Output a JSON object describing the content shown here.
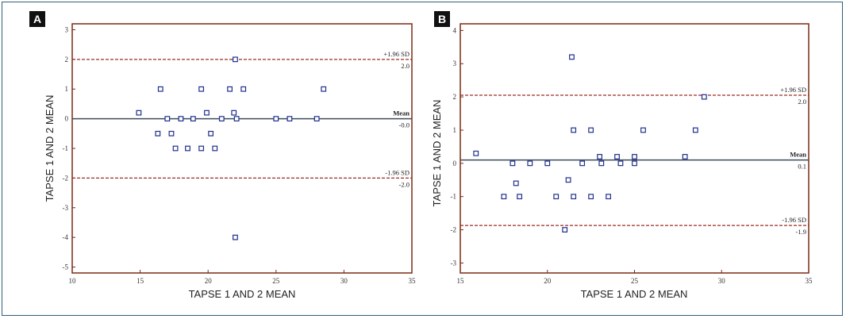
{
  "colors": {
    "plot_border": "#7a2a14",
    "mean_line": "#3c4d5a",
    "sd_line": "#9b2a24",
    "marker": "#1f2f8c",
    "panel_badge": "#111111"
  },
  "chart_data": [
    {
      "type": "scatter",
      "panel": "A",
      "xlabel": "TAPSE 1 AND 2 MEAN",
      "ylabel": "TAPSE 1 AND 2 MEAN",
      "xlim": [
        10,
        35
      ],
      "ylim": [
        -5.2,
        3.2
      ],
      "xticks": [
        10,
        15,
        20,
        25,
        30,
        35
      ],
      "yticks": [
        3,
        2,
        1,
        0,
        -1,
        -2,
        -3,
        -4,
        -5
      ],
      "ref_lines": {
        "upper": {
          "value": 2.0,
          "label": "+1.96 SD",
          "value_label": "2.0"
        },
        "mean": {
          "value": 0.0,
          "label": "Mean",
          "value_label": "-0.0"
        },
        "lower": {
          "value": -2.0,
          "label": "-1.96 SD",
          "value_label": "-2.0"
        }
      },
      "points": [
        [
          14.9,
          0.2
        ],
        [
          16.3,
          -0.5
        ],
        [
          16.5,
          1
        ],
        [
          17,
          0
        ],
        [
          17.3,
          -0.5
        ],
        [
          17.6,
          -1
        ],
        [
          18,
          0
        ],
        [
          18.5,
          -1
        ],
        [
          18.9,
          0
        ],
        [
          19.5,
          1
        ],
        [
          19.5,
          -1
        ],
        [
          19.9,
          0.2
        ],
        [
          20.2,
          -0.5
        ],
        [
          20.5,
          -1
        ],
        [
          21,
          0
        ],
        [
          21.6,
          1
        ],
        [
          21.9,
          0.2
        ],
        [
          22,
          2
        ],
        [
          22.1,
          0
        ],
        [
          22.6,
          1
        ],
        [
          25,
          0
        ],
        [
          26,
          0
        ],
        [
          28,
          0
        ],
        [
          28.5,
          1
        ],
        [
          22,
          -4
        ]
      ]
    },
    {
      "type": "scatter",
      "panel": "B",
      "xlabel": "TAPSE 1 AND 2 MEAN",
      "ylabel": "TAPSE 1 AND 2 MEAN",
      "xlim": [
        15,
        35
      ],
      "ylim": [
        -3.3,
        4.2
      ],
      "xticks": [
        15,
        20,
        25,
        30,
        35
      ],
      "yticks": [
        4,
        3,
        2,
        1,
        0,
        -1,
        -2,
        -3
      ],
      "ref_lines": {
        "upper": {
          "value": 2.05,
          "label": "+1.96 SD",
          "value_label": "2.0"
        },
        "mean": {
          "value": 0.1,
          "label": "Mean",
          "value_label": "0.1"
        },
        "lower": {
          "value": -1.87,
          "label": "-1.96 SD",
          "value_label": "-1.9"
        }
      },
      "points": [
        [
          15.9,
          0.3
        ],
        [
          17.5,
          -1
        ],
        [
          18,
          0
        ],
        [
          18.2,
          -0.6
        ],
        [
          18.4,
          -1
        ],
        [
          19,
          0
        ],
        [
          20,
          0
        ],
        [
          20.5,
          -1
        ],
        [
          21,
          -2
        ],
        [
          21.2,
          -0.5
        ],
        [
          21.4,
          3.2
        ],
        [
          21.5,
          1
        ],
        [
          21.5,
          -1
        ],
        [
          22,
          0
        ],
        [
          22.5,
          1
        ],
        [
          22.5,
          -1
        ],
        [
          23,
          0.2
        ],
        [
          23.1,
          0
        ],
        [
          23.5,
          -1
        ],
        [
          24,
          0.2
        ],
        [
          24.2,
          0
        ],
        [
          25,
          0.2
        ],
        [
          25,
          0
        ],
        [
          25.5,
          1
        ],
        [
          27.9,
          0.2
        ],
        [
          28.5,
          1
        ],
        [
          29,
          2
        ]
      ]
    }
  ]
}
